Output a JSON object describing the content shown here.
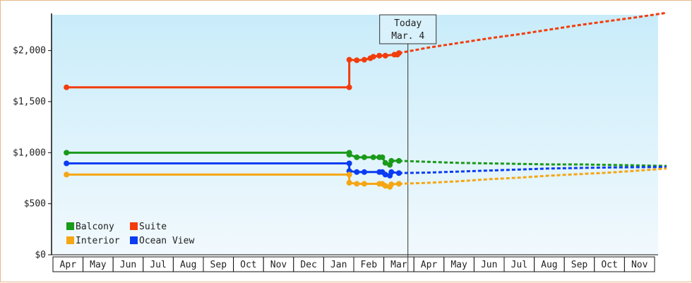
{
  "chart_data": {
    "type": "line",
    "y_tick_labels": [
      "$0",
      "$500",
      "$1,000",
      "$1,500",
      "$2,000"
    ],
    "y_tick_values": [
      0,
      500,
      1000,
      1500,
      2000
    ],
    "ylim": [
      0,
      2350
    ],
    "x_tick_labels": [
      "Apr",
      "May",
      "Jun",
      "Jul",
      "Aug",
      "Sep",
      "Oct",
      "Nov",
      "Dec",
      "Jan",
      "Feb",
      "Mar",
      "Apr",
      "May",
      "Jun",
      "Jul",
      "Aug",
      "Sep",
      "Oct",
      "Nov"
    ],
    "today": {
      "line1": "Today",
      "line2": "Mar. 4",
      "x": 11.3
    },
    "legend": [
      {
        "name": "Balcony",
        "color": "#1a9a1a"
      },
      {
        "name": "Suite",
        "color": "#f23c0c"
      },
      {
        "name": "Interior",
        "color": "#f5a614"
      },
      {
        "name": "Ocean View",
        "color": "#0b3cf2"
      }
    ],
    "series": [
      {
        "name": "Suite",
        "color": "#f23c0c",
        "points": [
          [
            -0.05,
            1640
          ],
          [
            9.35,
            1640
          ],
          [
            9.35,
            1910
          ],
          [
            9.6,
            1905
          ],
          [
            9.85,
            1910
          ],
          [
            10.05,
            1925
          ],
          [
            10.15,
            1940
          ],
          [
            10.35,
            1950
          ],
          [
            10.55,
            1950
          ],
          [
            10.85,
            1960
          ],
          [
            10.95,
            1960
          ],
          [
            11.0,
            1975
          ]
        ],
        "forecast": [
          [
            11.0,
            1975
          ],
          [
            12.0,
            2030
          ],
          [
            13.0,
            2075
          ],
          [
            14.0,
            2120
          ],
          [
            15.0,
            2160
          ],
          [
            16.0,
            2205
          ],
          [
            17.0,
            2250
          ],
          [
            18.0,
            2290
          ],
          [
            19.0,
            2330
          ],
          [
            19.9,
            2370
          ]
        ]
      },
      {
        "name": "Balcony",
        "color": "#1a9a1a",
        "points": [
          [
            -0.05,
            1000
          ],
          [
            9.35,
            1000
          ],
          [
            9.35,
            980
          ],
          [
            9.6,
            955
          ],
          [
            9.85,
            955
          ],
          [
            10.15,
            955
          ],
          [
            10.35,
            955
          ],
          [
            10.45,
            955
          ],
          [
            10.55,
            900
          ],
          [
            10.7,
            880
          ],
          [
            10.75,
            920
          ],
          [
            11.0,
            920
          ]
        ],
        "forecast": [
          [
            11.0,
            920
          ],
          [
            12.0,
            910
          ],
          [
            13.0,
            900
          ],
          [
            14.0,
            895
          ],
          [
            15.0,
            890
          ],
          [
            16.0,
            885
          ],
          [
            17.0,
            885
          ],
          [
            18.0,
            880
          ],
          [
            19.0,
            875
          ],
          [
            19.9,
            870
          ]
        ]
      },
      {
        "name": "Ocean View",
        "color": "#0b3cf2",
        "points": [
          [
            -0.05,
            895
          ],
          [
            9.35,
            895
          ],
          [
            9.35,
            820
          ],
          [
            9.6,
            810
          ],
          [
            9.85,
            810
          ],
          [
            10.35,
            810
          ],
          [
            10.45,
            810
          ],
          [
            10.55,
            785
          ],
          [
            10.7,
            775
          ],
          [
            10.75,
            810
          ],
          [
            11.0,
            800
          ]
        ],
        "forecast": [
          [
            11.0,
            800
          ],
          [
            12.0,
            805
          ],
          [
            13.0,
            815
          ],
          [
            14.0,
            825
          ],
          [
            15.0,
            835
          ],
          [
            16.0,
            845
          ],
          [
            17.0,
            850
          ],
          [
            18.0,
            855
          ],
          [
            19.0,
            858
          ],
          [
            19.9,
            860
          ]
        ]
      },
      {
        "name": "Interior",
        "color": "#f5a614",
        "points": [
          [
            -0.05,
            785
          ],
          [
            9.35,
            785
          ],
          [
            9.35,
            705
          ],
          [
            9.6,
            695
          ],
          [
            9.85,
            695
          ],
          [
            10.35,
            695
          ],
          [
            10.45,
            695
          ],
          [
            10.55,
            675
          ],
          [
            10.7,
            665
          ],
          [
            10.75,
            690
          ],
          [
            11.0,
            695
          ]
        ],
        "forecast": [
          [
            11.0,
            695
          ],
          [
            12.0,
            705
          ],
          [
            13.0,
            720
          ],
          [
            14.0,
            740
          ],
          [
            15.0,
            755
          ],
          [
            16.0,
            775
          ],
          [
            17.0,
            790
          ],
          [
            18.0,
            805
          ],
          [
            19.0,
            825
          ],
          [
            19.9,
            845
          ]
        ]
      }
    ]
  }
}
